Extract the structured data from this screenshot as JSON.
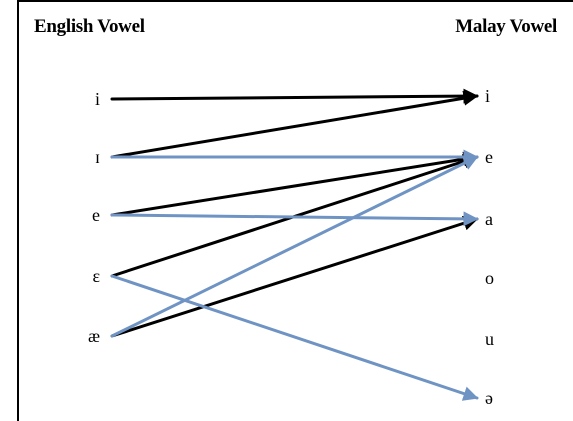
{
  "headings": {
    "left": "English Vowel",
    "right": "Malay Vowel"
  },
  "english_vowels": [
    "i",
    "ɪ",
    "e",
    "ɛ",
    "æ"
  ],
  "malay_vowels": [
    "i",
    "e",
    "a",
    "o",
    "u",
    "ə"
  ],
  "colors": {
    "black_line": "#000000",
    "blue_line": "#6f94c4"
  },
  "mappings": [
    {
      "from": "i",
      "to": "i",
      "color": "black"
    },
    {
      "from": "ɪ",
      "to": "i",
      "color": "black"
    },
    {
      "from": "ɪ",
      "to": "e",
      "color": "blue"
    },
    {
      "from": "e",
      "to": "e",
      "color": "black"
    },
    {
      "from": "e",
      "to": "a",
      "color": "blue"
    },
    {
      "from": "ɛ",
      "to": "e",
      "color": "black"
    },
    {
      "from": "ɛ",
      "to": "ə",
      "color": "blue"
    },
    {
      "from": "æ",
      "to": "e",
      "color": "blue"
    },
    {
      "from": "æ",
      "to": "a",
      "color": "black"
    }
  ]
}
